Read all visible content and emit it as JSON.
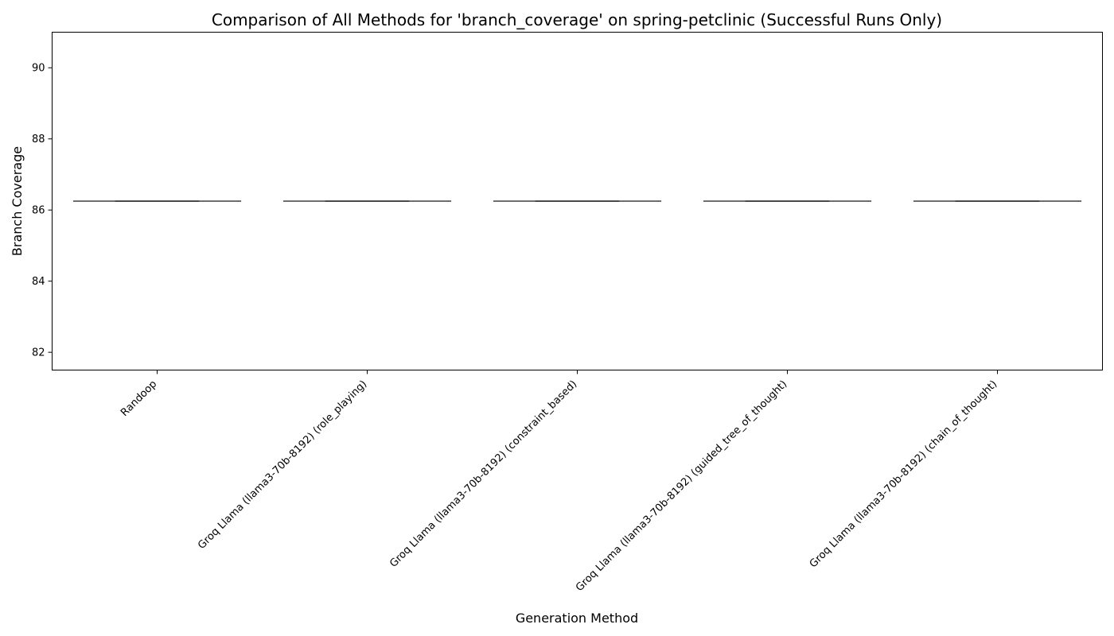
{
  "chart_data": {
    "type": "box",
    "title": "Comparison of All Methods for 'branch_coverage' on spring-petclinic (Successful Runs Only)",
    "xlabel": "Generation Method",
    "ylabel": "Branch Coverage",
    "ylim": [
      81.5,
      91.0
    ],
    "yticks": [
      82,
      84,
      86,
      88,
      90
    ],
    "grid": false,
    "line_color": "#3f3f3f",
    "categories": [
      "Randoop",
      "Groq Llama (llama3-70b-8192) (role_playing)",
      "Groq Llama (llama3-70b-8192) (constraint_based)",
      "Groq Llama (llama3-70b-8192) (guided_tree_of_thought)",
      "Groq Llama (llama3-70b-8192) (chain_of_thought)"
    ],
    "series": [
      {
        "values": [
          {
            "min": 86.25,
            "q1": 86.25,
            "median": 86.25,
            "q3": 86.25,
            "max": 86.25
          },
          {
            "min": 86.25,
            "q1": 86.25,
            "median": 86.25,
            "q3": 86.25,
            "max": 86.25
          },
          {
            "min": 86.25,
            "q1": 86.25,
            "median": 86.25,
            "q3": 86.25,
            "max": 86.25
          },
          {
            "min": 86.25,
            "q1": 86.25,
            "median": 86.25,
            "q3": 86.25,
            "max": 86.25
          },
          {
            "min": 86.25,
            "q1": 86.25,
            "median": 86.25,
            "q3": 86.25,
            "max": 86.25
          }
        ]
      }
    ]
  }
}
